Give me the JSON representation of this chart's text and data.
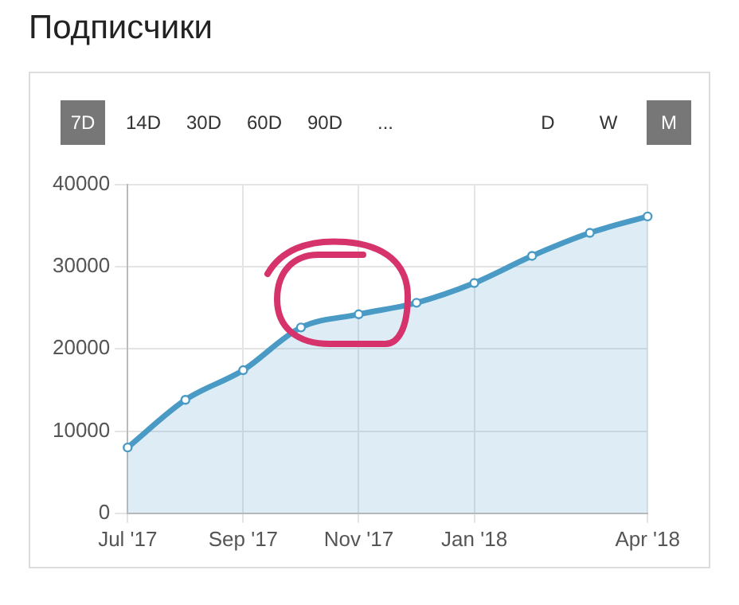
{
  "chart_data": {
    "type": "area",
    "title": "Подписчики",
    "annotations": [
      "7D",
      "14D",
      "30D",
      "60D",
      "90D",
      "...",
      "D",
      "W",
      "M"
    ],
    "categories": [
      "Jul '17",
      null,
      "Sep '17",
      null,
      "Nov '17",
      null,
      "Jan '18",
      null,
      null,
      "Apr '18"
    ],
    "series": [
      {
        "color": "#4a9ac6",
        "values": [
          8000,
          13800,
          17400,
          22600,
          24200,
          25600,
          28000,
          31300,
          34100,
          36100
        ]
      }
    ],
    "ylim": [
      0,
      40000
    ],
    "yticks": [
      0,
      10000,
      20000,
      30000,
      40000
    ],
    "grid": true,
    "legend": false,
    "marker": "circle"
  }
}
